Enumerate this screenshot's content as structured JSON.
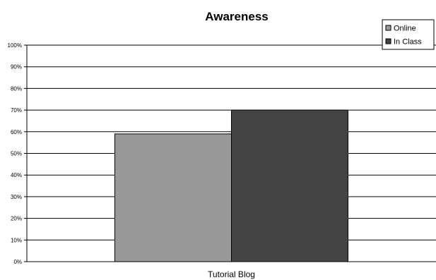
{
  "chart_data": {
    "type": "bar",
    "title": "Awareness",
    "categories": [
      "Tutorial Blog"
    ],
    "series": [
      {
        "name": "Online",
        "values": [
          59
        ],
        "color": "#999999"
      },
      {
        "name": "In Class",
        "values": [
          70
        ],
        "color": "#444444"
      }
    ],
    "ylim": [
      0,
      100
    ],
    "y_ticks": [
      0,
      10,
      20,
      30,
      40,
      50,
      60,
      70,
      80,
      90,
      100
    ],
    "y_tick_labels": [
      "0%",
      "10%",
      "20%",
      "30%",
      "40%",
      "50%",
      "60%",
      "70%",
      "80%",
      "90%",
      "100%"
    ],
    "xlabel": "",
    "ylabel": "",
    "grid": true,
    "legend_position": "top-right"
  }
}
